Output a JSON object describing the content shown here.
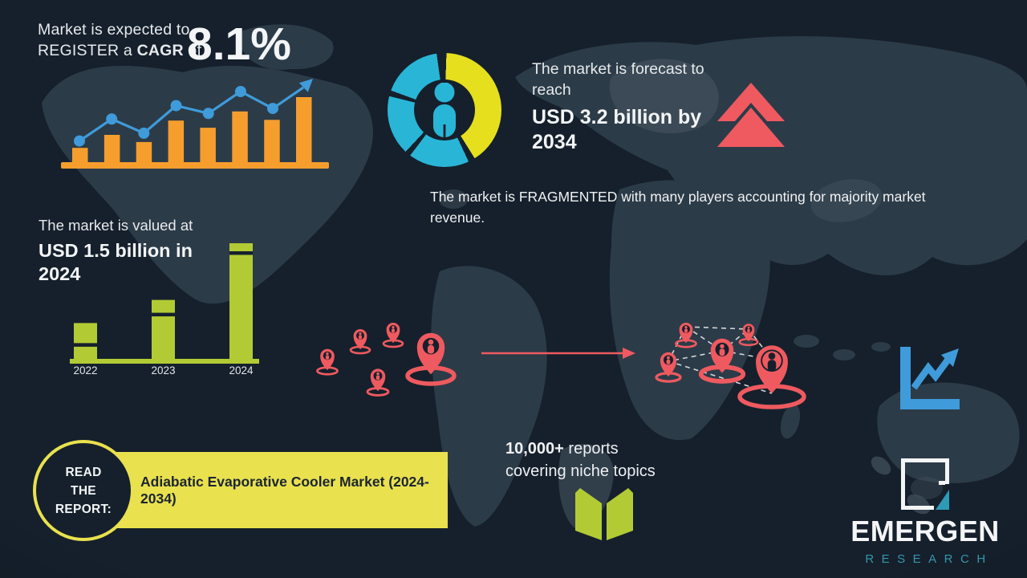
{
  "colors": {
    "background": "#15202c",
    "map": "#2c3b48",
    "map_light": "#41505c",
    "orange": "#f59e2e",
    "blue": "#3f9bd9",
    "cyan": "#29b5d6",
    "yellow": "#e6df1e",
    "banner_yellow": "#e9e14e",
    "green": "#b2cb35",
    "red": "#ee5a5f",
    "text_light": "#e8ebed",
    "text_dark": "#1b2531",
    "teal": "#3696ab",
    "teal_bright": "#2e9ab5"
  },
  "cagr": {
    "line1": "Market is expected to",
    "line2_pre": "REGISTER a ",
    "line2_bold": "CAGR",
    "line2_post": " of",
    "value": "8.1%"
  },
  "forecast": {
    "line1": "The market is forecast to",
    "line2": "reach",
    "headline_line1": "USD 3.2 billion by",
    "headline_line2": "2034"
  },
  "fragmented": {
    "line1": "The market is FRAGMENTED with many players accounting for majority market",
    "line2": "revenue."
  },
  "valued": {
    "intro": "The market is valued at",
    "headline_line1": "USD 1.5 billion in",
    "headline_line2": "2024"
  },
  "read_report": {
    "circle_line1": "READ",
    "circle_line2": "THE",
    "circle_line3": "REPORT:",
    "report_title": "Adiabatic Evaporative Cooler Market (2024-2034)"
  },
  "reports_promo": {
    "count": "10,000+",
    "line1_rest": " reports",
    "line2": "covering niche topics"
  },
  "brand": {
    "name": "EMERGEN",
    "subtitle": "RESEARCH"
  },
  "icons": {
    "growth_chart": "bar-chart-rising-trend-icon",
    "donut": "donut-chart-person-icon",
    "forecast_arrow": "double-chevron-up-icon",
    "map_pins": "location-pin-person-icon",
    "trend": "line-chart-arrow-icon",
    "book": "open-book-icon",
    "brand_mark": "emergen-square-logo-icon"
  },
  "chart_data": [
    {
      "type": "bar",
      "title": "",
      "description": "Decorative rising bar chart with overlaid trend line ending in an up-right arrow (top-left, orange bars, blue line)",
      "categories": [
        "",
        "",
        "",
        "",
        "",
        "",
        "",
        ""
      ],
      "values": [
        22,
        42,
        31,
        64,
        53,
        78,
        65,
        100
      ],
      "series": [
        {
          "name": "trend-line",
          "values": [
            30,
            61,
            41,
            80,
            69,
            100,
            76
          ]
        }
      ],
      "ylim": [
        0,
        100
      ],
      "axes_labeled": false,
      "grid": false
    },
    {
      "type": "bar",
      "title": "",
      "description": "Market value by year, decorative heights (green bars); market valued USD 1.5 billion in 2024",
      "categories": [
        "2022",
        "2023",
        "2024"
      ],
      "values": [
        31,
        51,
        100
      ],
      "ylim": [
        0,
        100
      ],
      "axes_labeled": true,
      "grid": false
    },
    {
      "type": "pie",
      "title": "",
      "description": "Decorative donut chart with person pictogram in the hole",
      "slices": [
        {
          "color": "#e6df1e",
          "start_deg": 2,
          "end_deg": 148
        },
        {
          "color": "#29b5d6",
          "start_deg": 155,
          "end_deg": 217
        },
        {
          "color": "#29b5d6",
          "start_deg": 223,
          "end_deg": 284
        },
        {
          "color": "#29b5d6",
          "start_deg": 290,
          "end_deg": 352
        }
      ]
    }
  ]
}
